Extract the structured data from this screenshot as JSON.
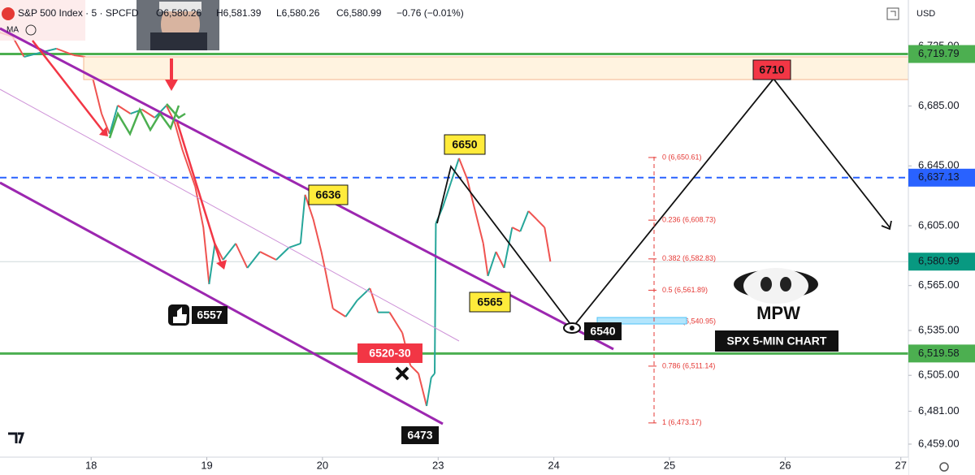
{
  "header": {
    "symbol": "S&P 500 Index · 5 · SPCFD",
    "ohlc": [
      "O6,580.26",
      "H6,581.39",
      "L6,580.26",
      "C6,580.99",
      "−0.76 (−0.01%)"
    ],
    "indicator": "MA",
    "currency": "USD"
  },
  "chart_data": {
    "type": "line",
    "x": [
      -0.79,
      -0.68,
      -0.58,
      -0.44,
      -0.3,
      -0.15,
      -0.05,
      0.02,
      0.09,
      0.16,
      0.23,
      0.34,
      0.44,
      0.55,
      0.65,
      0.72,
      0.79,
      0.9,
      0.97,
      1.02,
      1.07,
      1.14,
      1.25,
      1.35,
      1.46,
      1.6,
      1.71,
      1.81,
      1.85,
      1.92,
      1.99,
      2.02,
      2.09,
      2.2,
      2.3,
      2.41,
      2.48,
      2.58,
      2.69,
      2.76,
      2.83,
      2.9,
      2.94,
      2.97,
      2.98,
      3.04,
      3.11,
      3.18,
      3.25,
      3.32,
      3.39,
      3.43,
      3.5,
      3.57,
      3.64,
      3.71,
      3.78,
      3.85,
      3.92,
      3.97
    ],
    "values": [
      6734.2,
      6731.5,
      6717.9,
      6720.7,
      6723.4,
      6719.0,
      6717.9,
      6701.7,
      6679.9,
      6666.4,
      6685.4,
      6679.9,
      6682.7,
      6677.2,
      6685.4,
      6674.5,
      6655.5,
      6631.1,
      6603.9,
      6565.9,
      6593.1,
      6582.2,
      6593.1,
      6576.8,
      6587.6,
      6582.2,
      6590.4,
      6593.1,
      6625.7,
      6609.4,
      6587.6,
      6576.8,
      6549.6,
      6544.2,
      6555.1,
      6563.2,
      6547.1,
      6547.1,
      6533.4,
      6511.6,
      6506.2,
      6484.5,
      6503.5,
      6506.2,
      6606.6,
      6617.5,
      6633.8,
      6650.1,
      6636.5,
      6614.8,
      6593.1,
      6571.4,
      6587.6,
      6576.8,
      6603.9,
      6601.2,
      6614.8,
      6609.4,
      6603.9,
      6581.1
    ],
    "up_color": "#26a69a",
    "down_color": "#ef5350",
    "xlim": [
      -0.788,
      7.065
    ],
    "xticks": [
      {
        "value": 0,
        "label": "18"
      },
      {
        "value": 1,
        "label": "19"
      },
      {
        "value": 2,
        "label": "20"
      },
      {
        "value": 3,
        "label": "23"
      },
      {
        "value": 4,
        "label": "24"
      },
      {
        "value": 5,
        "label": "25"
      },
      {
        "value": 6,
        "label": "26"
      },
      {
        "value": 7,
        "label": "27"
      }
    ],
    "ylim": [
      6450.3,
      6755.9
    ],
    "yticks": [
      {
        "value": 6459,
        "label": "6,459.00"
      },
      {
        "value": 6481,
        "label": "6,481.00"
      },
      {
        "value": 6505,
        "label": "6,505.00"
      },
      {
        "value": 6535,
        "label": "6,535.00"
      },
      {
        "value": 6565,
        "label": "6,565.00"
      },
      {
        "value": 6605,
        "label": "6,605.00"
      },
      {
        "value": 6645,
        "label": "6,645.00"
      },
      {
        "value": 6685,
        "label": "6,685.00"
      },
      {
        "value": 6725,
        "label": "6,725.00"
      }
    ],
    "price_lines": [
      {
        "value": 6719.79,
        "label": "6,719.79",
        "color": "#4caf50",
        "style": "solid"
      },
      {
        "value": 6637.13,
        "label": "6,637.13",
        "color": "#2962ff",
        "style": "dashed"
      },
      {
        "value": 6580.99,
        "label": "6,580.99",
        "color": "#089981",
        "style": "thin"
      },
      {
        "value": 6519.58,
        "label": "6,519.58",
        "color": "#4caf50",
        "style": "solid"
      }
    ],
    "fib_levels": [
      {
        "value": 6650.61,
        "label": "0 (6,650.61)"
      },
      {
        "value": 6608.73,
        "label": "0.236 (6,608.73)"
      },
      {
        "value": 6582.83,
        "label": "0.382 (6,582.83)"
      },
      {
        "value": 6561.89,
        "label": "0.5 (6,561.89)"
      },
      {
        "value": 6540.95,
        "label": "0.618 (6,540.95)"
      },
      {
        "value": 6511.14,
        "label": "0.786 (6,511.14)"
      },
      {
        "value": 6473.17,
        "label": "1 (6,473.17)"
      }
    ],
    "annotations": [
      6710,
      6650,
      6636,
      6565,
      6557,
      "6520-30",
      6473,
      6540,
      "MPW",
      "SPX 5-MIN CHART"
    ]
  }
}
